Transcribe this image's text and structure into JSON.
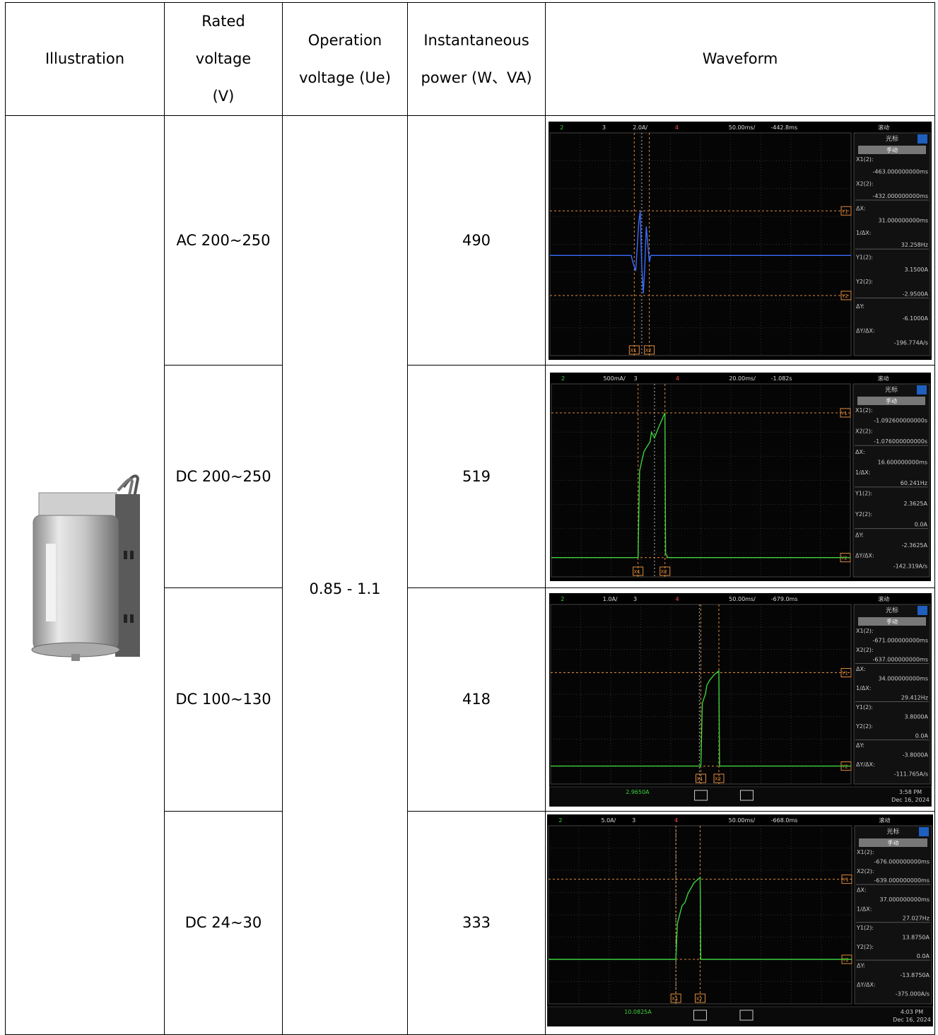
{
  "table": {
    "headers": [
      "Illustration",
      "Rated voltage (V)",
      "Operation voltage (Ue)",
      "Instantaneous power (W、VA)",
      "Waveform"
    ],
    "operation_voltage": "0.85 - 1.1",
    "rows": [
      {
        "rated_voltage": "AC 200~250",
        "power": 490,
        "scope": {
          "top": [
            "2",
            "3",
            "2.0A/",
            "4",
            "50.00ms/",
            "-442.8ms",
            "滚动"
          ],
          "panel_title": "光标",
          "mode": "手动",
          "readouts": [
            {
              "label": "X1(2):",
              "value": "-463.000000000ms"
            },
            {
              "label": "X2(2):",
              "value": "-432.000000000ms"
            },
            {
              "label": "ΔX:",
              "value": "31.000000000ms"
            },
            {
              "label": "1/ΔX:",
              "value": "32.258Hz"
            },
            {
              "label": "Y1(2):",
              "value": "3.1500A"
            },
            {
              "label": "Y2(2):",
              "value": "-2.9500A"
            },
            {
              "label": "ΔY:",
              "value": "-6.1000A"
            },
            {
              "label": "ΔY/ΔX:",
              "value": "-196.774A/s"
            }
          ]
        }
      },
      {
        "rated_voltage": "DC 200~250",
        "power": 519,
        "scope": {
          "top": [
            "2",
            "500mA/",
            "3",
            "4",
            "20.00ms/",
            "-1.082s",
            "滚动"
          ],
          "panel_title": "光标",
          "mode": "手动",
          "readouts": [
            {
              "label": "X1(2):",
              "value": "-1.092600000000s"
            },
            {
              "label": "X2(2):",
              "value": "-1.076000000000s"
            },
            {
              "label": "ΔX:",
              "value": "16.600000000ms"
            },
            {
              "label": "1/ΔX:",
              "value": "60.241Hz"
            },
            {
              "label": "Y1(2):",
              "value": "2.3625A"
            },
            {
              "label": "Y2(2):",
              "value": "0.0A"
            },
            {
              "label": "ΔY:",
              "value": "-2.3625A"
            },
            {
              "label": "ΔY/ΔX:",
              "value": "-142.319A/s"
            }
          ]
        }
      },
      {
        "rated_voltage": "DC 100~130",
        "power": 418,
        "scope": {
          "top": [
            "2",
            "1.0A/",
            "3",
            "4",
            "50.00ms/",
            "-679.0ms",
            "滚动"
          ],
          "panel_title": "光标",
          "mode": "手动",
          "readouts": [
            {
              "label": "X1(2):",
              "value": "-671.000000000ms"
            },
            {
              "label": "X2(2):",
              "value": "-637.000000000ms"
            },
            {
              "label": "ΔX:",
              "value": "34.000000000ms"
            },
            {
              "label": "1/ΔX:",
              "value": "29.412Hz"
            },
            {
              "label": "Y1(2):",
              "value": "3.8000A"
            },
            {
              "label": "Y2(2):",
              "value": "0.0A"
            },
            {
              "label": "ΔY:",
              "value": "-3.8000A"
            },
            {
              "label": "ΔY/ΔX:",
              "value": "-111.765A/s"
            }
          ],
          "bottom": {
            "current": "2.9650A",
            "time": "3:58 PM",
            "date": "Dec 16, 2024"
          }
        }
      },
      {
        "rated_voltage": "DC 24~30",
        "power": 333,
        "scope": {
          "top": [
            "2",
            "5.0A/",
            "3",
            "4",
            "50.00ms/",
            "-668.0ms",
            "滚动"
          ],
          "panel_title": "光标",
          "mode": "手动",
          "readouts": [
            {
              "label": "X1(2):",
              "value": "-676.000000000ms"
            },
            {
              "label": "X2(2):",
              "value": "-639.000000000ms"
            },
            {
              "label": "ΔX:",
              "value": "37.000000000ms"
            },
            {
              "label": "1/ΔX:",
              "value": "27.027Hz"
            },
            {
              "label": "Y1(2):",
              "value": "13.8750A"
            },
            {
              "label": "Y2(2):",
              "value": "0.0A"
            },
            {
              "label": "ΔY:",
              "value": "-13.8750A"
            },
            {
              "label": "ΔY/ΔX:",
              "value": "-375.000A/s"
            }
          ],
          "bottom": {
            "current": "10.0825A",
            "time": "4:03 PM",
            "date": "Dec 16, 2024"
          }
        }
      }
    ]
  },
  "scope_labels": [
    "X1",
    "X2",
    "Y1",
    "Y2"
  ]
}
